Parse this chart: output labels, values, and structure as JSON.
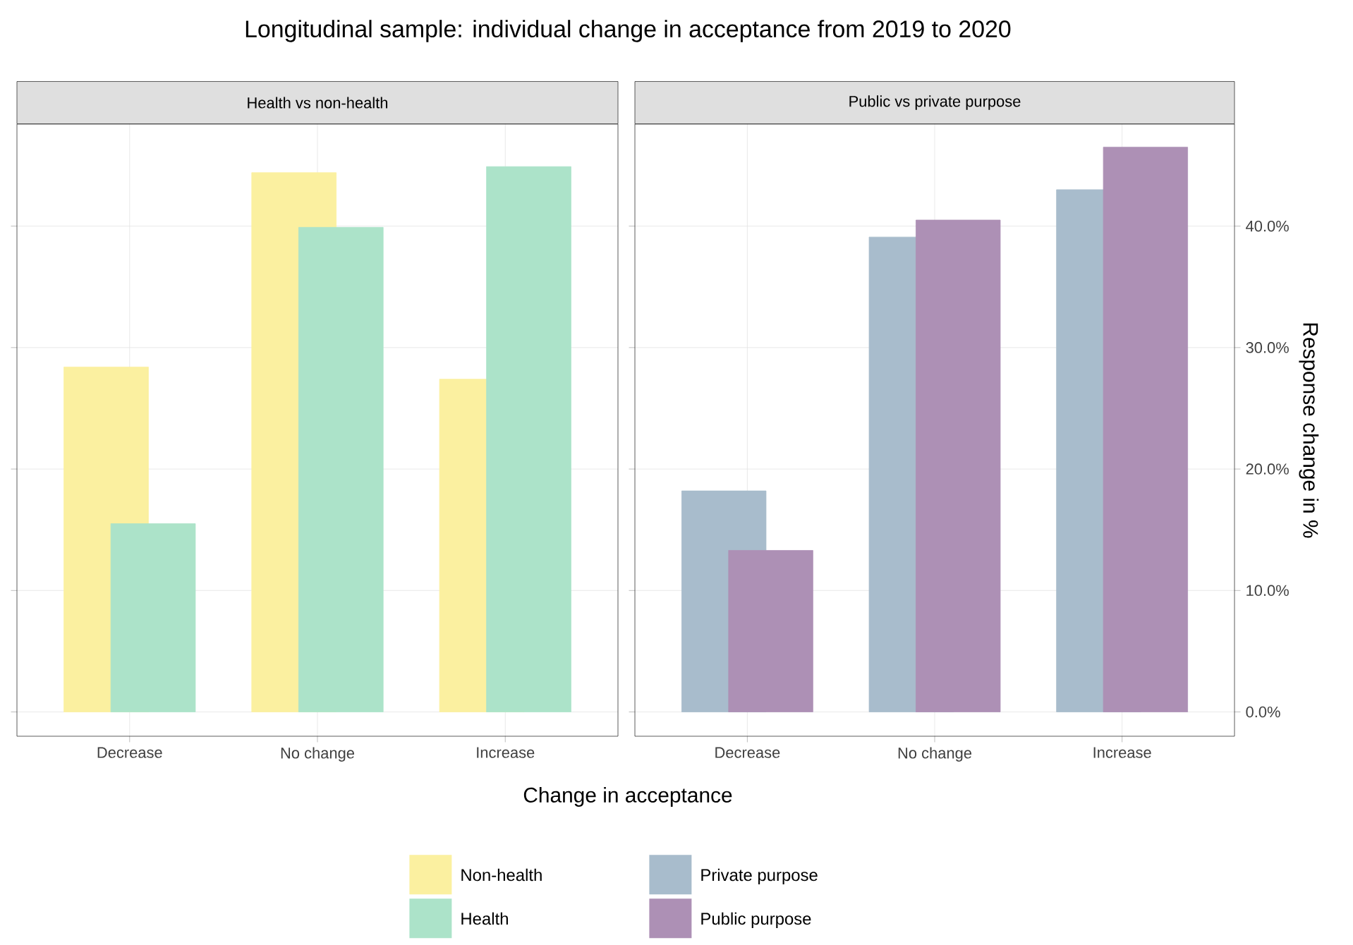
{
  "chart_data": [
    {
      "type": "bar",
      "title": "Longitudinal sample: individual change in acceptance from 2019 to 2020",
      "subtitle": "Health vs non-health",
      "xlabel": "Change in acceptance",
      "categories": [
        "Decrease",
        "No change",
        "Increase"
      ],
      "series": [
        {
          "name": "Non-health",
          "color": "#fbf0a0",
          "values": [
            28.4,
            44.4,
            27.4
          ]
        },
        {
          "name": "Health",
          "color": "#ace3c9",
          "values": [
            15.5,
            39.9,
            44.9
          ]
        }
      ],
      "ylim": [
        -2,
        48.4
      ],
      "yticks": [
        0,
        10,
        20,
        30,
        40
      ],
      "tick_labels": "x",
      "grid": true,
      "legend": "bottom"
    },
    {
      "type": "bar",
      "subtitle": "Public vs private purpose",
      "ylabel": "Response change in %",
      "categories": [
        "Decrease",
        "No change",
        "Increase"
      ],
      "series": [
        {
          "name": "Private purpose",
          "color": "#a8bccc",
          "values": [
            18.2,
            39.1,
            43.0
          ]
        },
        {
          "name": "Public purpose",
          "color": "#ad90b5",
          "values": [
            13.3,
            40.5,
            46.5
          ]
        }
      ],
      "ylim": [
        -2,
        48.4
      ],
      "yticks": [
        {
          "value": 0,
          "label": "0.0%"
        },
        {
          "value": 10,
          "label": "10.0%"
        },
        {
          "value": 20,
          "label": "20.0%"
        },
        {
          "value": 30,
          "label": "30.0%"
        },
        {
          "value": 40,
          "label": "40.0%"
        }
      ],
      "grid": true,
      "legend": "bottom"
    }
  ]
}
